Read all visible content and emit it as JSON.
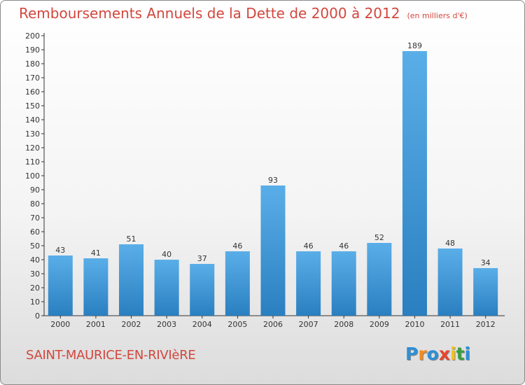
{
  "title": "Remboursements Annuels de la Dette de 2000 à 2012",
  "unit_note": "(en milliers d'€)",
  "commune": "SAINT-MAURICE-EN-RIVIèRE",
  "logo": {
    "letters": [
      "P",
      "r",
      "o",
      "x",
      "i",
      "t",
      "i"
    ],
    "colors": [
      "#2e8fd6",
      "#f28c1e",
      "#2e8fd6",
      "#e8462e",
      "#f5c11a",
      "#3a9e3f",
      "#2e8fd6"
    ]
  },
  "colors": {
    "bar_light": "#5aaee8",
    "bar_dark": "#2a7fc0",
    "title": "#d2473d"
  },
  "chart_data": {
    "type": "bar",
    "title": "Remboursements Annuels de la Dette de 2000 à 2012",
    "xlabel": "",
    "ylabel": "",
    "categories": [
      "2000",
      "2001",
      "2002",
      "2003",
      "2004",
      "2005",
      "2006",
      "2007",
      "2008",
      "2009",
      "2010",
      "2011",
      "2012"
    ],
    "values": [
      43,
      41,
      51,
      40,
      37,
      46,
      93,
      46,
      46,
      52,
      189,
      48,
      34
    ],
    "ylim": [
      0,
      200
    ],
    "yticks": [
      0,
      10,
      20,
      30,
      40,
      50,
      60,
      70,
      80,
      90,
      100,
      110,
      120,
      130,
      140,
      150,
      160,
      170,
      180,
      190,
      200
    ],
    "grid": false,
    "legend": "none"
  }
}
